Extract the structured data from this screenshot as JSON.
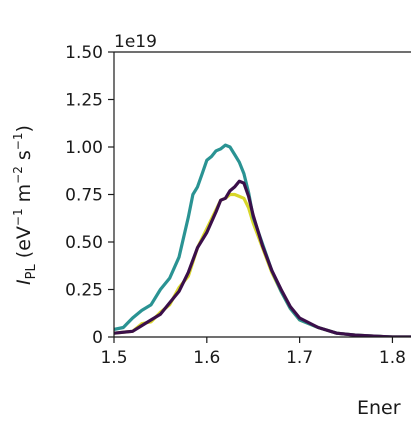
{
  "chart_data": {
    "type": "line",
    "title": "",
    "xlabel": "Ener",
    "ylabel": {
      "prefix": "I",
      "prefix_sub": "PL",
      "unit_open": " (eV",
      "sup1": "−1",
      "unit_m": " m",
      "sup2": "−2",
      "unit_s": " s",
      "sup3": "−1",
      "unit_close": ")"
    },
    "y_multiplier_label": "1e19",
    "xlim": [
      1.5,
      1.82
    ],
    "ylim": [
      0,
      1.5
    ],
    "x_ticks": [
      1.5,
      1.6,
      1.7,
      1.8
    ],
    "x_tick_labels": [
      "1.5",
      "1.6",
      "1.7",
      "1.8"
    ],
    "y_ticks": [
      0,
      0.25,
      0.5,
      0.75,
      1.0,
      1.25,
      1.5
    ],
    "y_tick_labels": [
      "0",
      "0.25",
      "0.50",
      "0.75",
      "1.00",
      "1.25",
      "1.50"
    ],
    "grid": false,
    "series": [
      {
        "color": "#d8d62a",
        "x": [
          1.5,
          1.52,
          1.53,
          1.54,
          1.55,
          1.56,
          1.57,
          1.58,
          1.59,
          1.6,
          1.61,
          1.615,
          1.62,
          1.625,
          1.63,
          1.635,
          1.64,
          1.645,
          1.65,
          1.66,
          1.67,
          1.68,
          1.69,
          1.7,
          1.72,
          1.74,
          1.76,
          1.78,
          1.8,
          1.82
        ],
        "y": [
          0.02,
          0.03,
          0.07,
          0.08,
          0.13,
          0.17,
          0.26,
          0.32,
          0.47,
          0.57,
          0.67,
          0.72,
          0.73,
          0.75,
          0.75,
          0.74,
          0.73,
          0.68,
          0.6,
          0.47,
          0.34,
          0.24,
          0.15,
          0.09,
          0.05,
          0.02,
          0.01,
          0.005,
          0.0,
          0.0
        ]
      },
      {
        "color": "#2a9393",
        "x": [
          1.5,
          1.51,
          1.52,
          1.53,
          1.54,
          1.55,
          1.56,
          1.57,
          1.58,
          1.585,
          1.59,
          1.595,
          1.6,
          1.605,
          1.61,
          1.615,
          1.62,
          1.625,
          1.63,
          1.635,
          1.64,
          1.645,
          1.65,
          1.66,
          1.67,
          1.68,
          1.69,
          1.7,
          1.72,
          1.74,
          1.76,
          1.78,
          1.8,
          1.82
        ],
        "y": [
          0.04,
          0.05,
          0.1,
          0.14,
          0.17,
          0.25,
          0.31,
          0.42,
          0.63,
          0.75,
          0.79,
          0.86,
          0.93,
          0.95,
          0.98,
          0.99,
          1.01,
          1.0,
          0.96,
          0.92,
          0.86,
          0.76,
          0.63,
          0.49,
          0.35,
          0.24,
          0.15,
          0.09,
          0.05,
          0.02,
          0.01,
          0.005,
          0.0,
          0.0
        ]
      },
      {
        "color": "#3b0f4a",
        "x": [
          1.5,
          1.52,
          1.53,
          1.54,
          1.55,
          1.56,
          1.57,
          1.58,
          1.59,
          1.6,
          1.61,
          1.615,
          1.62,
          1.625,
          1.63,
          1.635,
          1.64,
          1.645,
          1.65,
          1.66,
          1.67,
          1.68,
          1.69,
          1.7,
          1.72,
          1.74,
          1.76,
          1.78,
          1.8,
          1.82
        ],
        "y": [
          0.02,
          0.03,
          0.06,
          0.09,
          0.12,
          0.18,
          0.24,
          0.34,
          0.47,
          0.55,
          0.66,
          0.72,
          0.73,
          0.77,
          0.79,
          0.82,
          0.81,
          0.74,
          0.64,
          0.48,
          0.35,
          0.25,
          0.16,
          0.1,
          0.05,
          0.02,
          0.01,
          0.005,
          0.0,
          0.0
        ]
      }
    ]
  }
}
